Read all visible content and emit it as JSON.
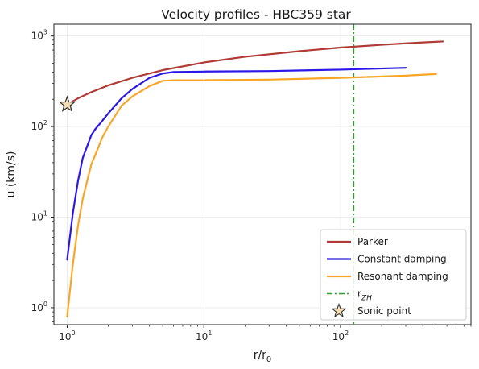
{
  "chart_data": {
    "type": "line",
    "title": "Velocity profiles - HBC359 star",
    "xlabel": "r/r",
    "xlabel_sub": "0",
    "ylabel": "u (km/s)",
    "xscale": "log",
    "yscale": "log",
    "xlim": [
      0.8,
      900
    ],
    "ylim": [
      0.65,
      1350
    ],
    "grid": true,
    "legend_position": "lower-right",
    "x_ticks": [
      {
        "value": 1,
        "base": "10",
        "exp": "0"
      },
      {
        "value": 10,
        "base": "10",
        "exp": "1"
      },
      {
        "value": 100,
        "base": "10",
        "exp": "2"
      }
    ],
    "y_ticks": [
      {
        "value": 1,
        "base": "10",
        "exp": "0"
      },
      {
        "value": 10,
        "base": "10",
        "exp": "1"
      },
      {
        "value": 100,
        "base": "10",
        "exp": "2"
      },
      {
        "value": 1000,
        "base": "10",
        "exp": "3"
      }
    ],
    "series": [
      {
        "name": "Parker",
        "color": "#b03a35",
        "x": [
          1.0,
          1.2,
          1.5,
          2.0,
          3.0,
          5.0,
          10,
          20,
          50,
          100,
          200,
          400,
          560
        ],
        "y": [
          175,
          205,
          240,
          285,
          345,
          420,
          510,
          590,
          680,
          745,
          800,
          850,
          870
        ]
      },
      {
        "name": "Constant damping",
        "color": "#2b17e8",
        "x": [
          1.0,
          1.1,
          1.2,
          1.3,
          1.5,
          1.6,
          1.8,
          2.0,
          2.5,
          3.0,
          4.0,
          5.0,
          6.0,
          10,
          30,
          100,
          300
        ],
        "y": [
          3.4,
          11,
          25,
          45,
          80,
          93,
          115,
          140,
          205,
          260,
          345,
          385,
          400,
          405,
          410,
          425,
          445
        ]
      },
      {
        "name": "Resonant damping",
        "color": "#f9a528",
        "x": [
          1.0,
          1.1,
          1.2,
          1.3,
          1.5,
          1.7,
          1.8,
          2.0,
          2.5,
          3.0,
          4.0,
          5.0,
          6.0,
          10,
          30,
          100,
          300,
          500
        ],
        "y": [
          0.8,
          3.0,
          8.0,
          16,
          38,
          60,
          75,
          100,
          170,
          215,
          280,
          320,
          325,
          325,
          330,
          345,
          365,
          380
        ]
      }
    ],
    "reference_line": {
      "name": "r",
      "name_sub": "ZH",
      "x": 125,
      "color": "#2ca02c",
      "style": "dashdot"
    },
    "marker": {
      "name": "Sonic point",
      "x": 1.0,
      "y": 175,
      "symbol": "star",
      "fill": "#f5deb3",
      "stroke": "#333333"
    }
  }
}
